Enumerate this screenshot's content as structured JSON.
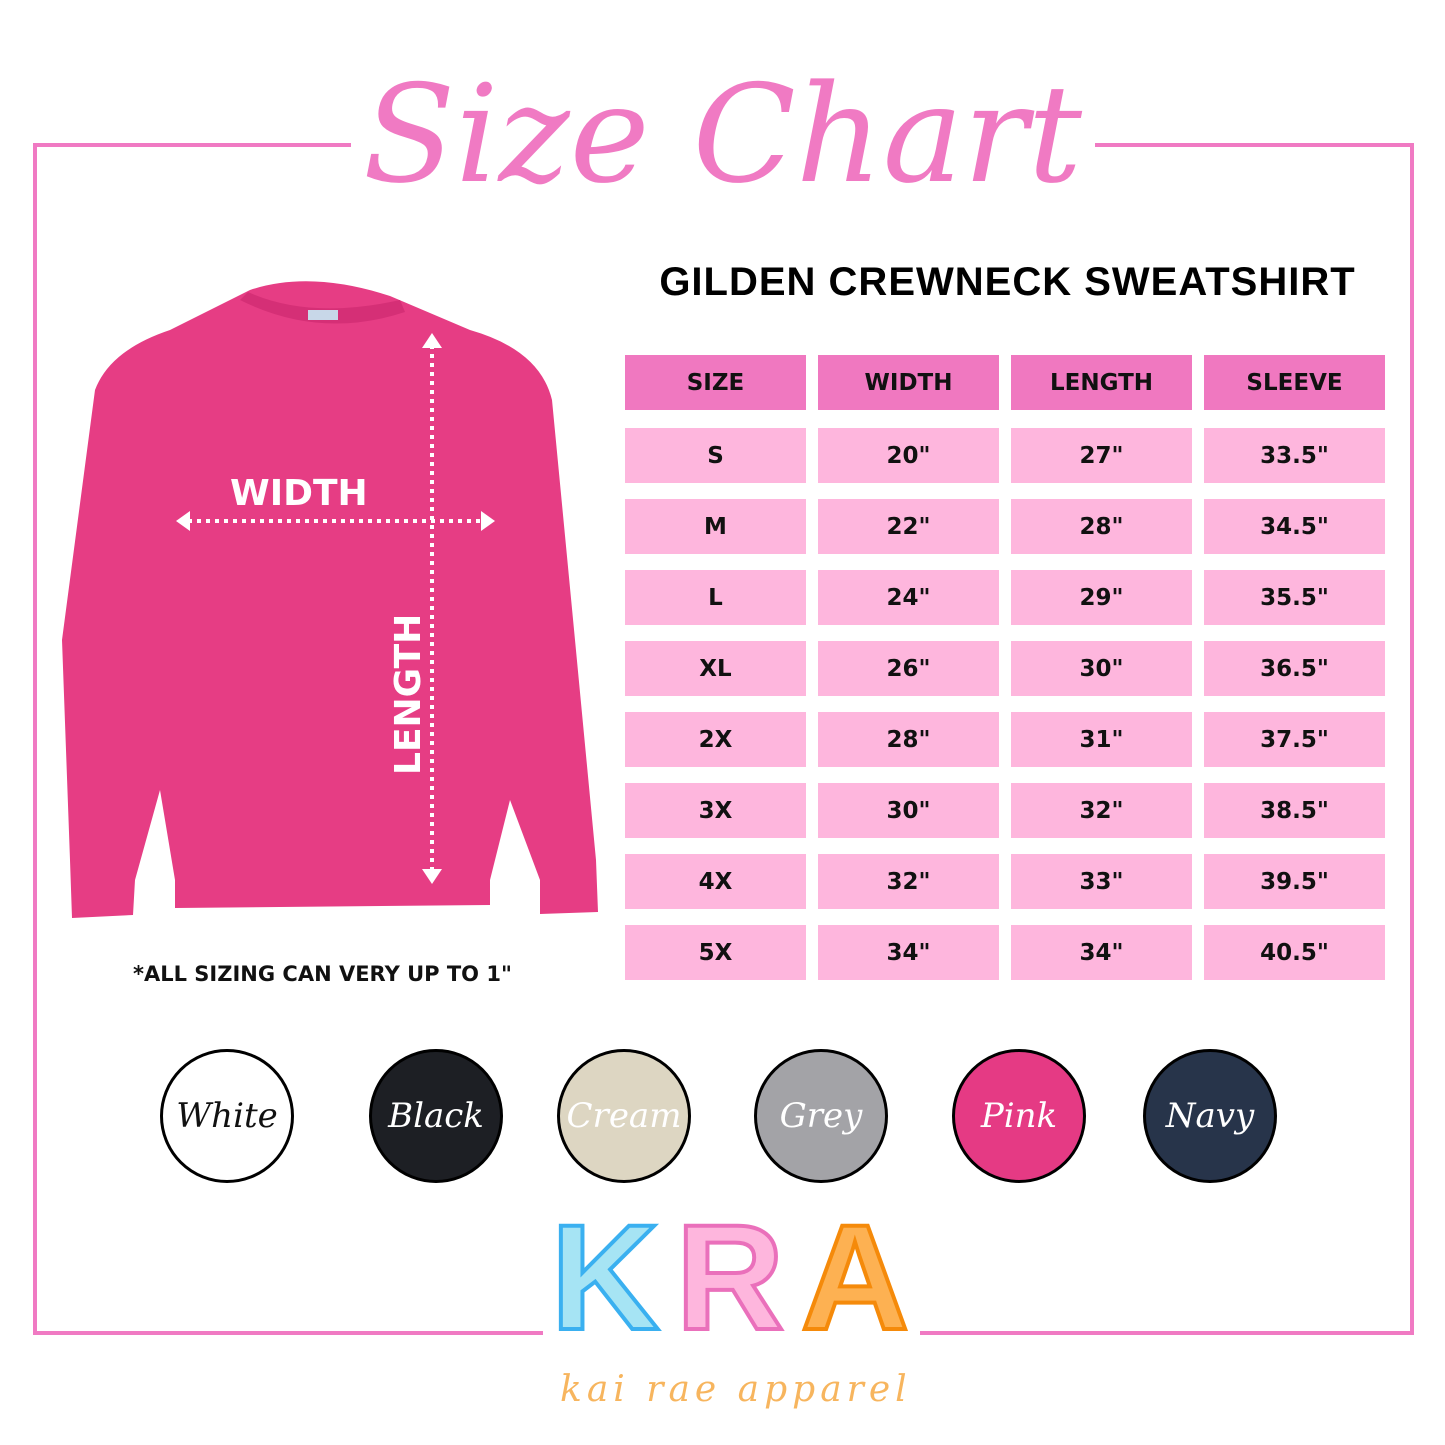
{
  "title": "Size Chart",
  "subtitle": "GILDEN CREWNECK SWEATSHIRT",
  "garment_labels": {
    "width": "WIDTH",
    "length": "LENGTH"
  },
  "table": {
    "headers": [
      "SIZE",
      "WIDTH",
      "LENGTH",
      "SLEEVE"
    ],
    "rows": [
      [
        "S",
        "20\"",
        "27\"",
        "33.5\""
      ],
      [
        "M",
        "22\"",
        "28\"",
        "34.5\""
      ],
      [
        "L",
        "24\"",
        "29\"",
        "35.5\""
      ],
      [
        "XL",
        "26\"",
        "30\"",
        "36.5\""
      ],
      [
        "2X",
        "28\"",
        "31\"",
        "37.5\""
      ],
      [
        "3X",
        "30\"",
        "32\"",
        "38.5\""
      ],
      [
        "4X",
        "32\"",
        "33\"",
        "39.5\""
      ],
      [
        "5X",
        "34\"",
        "34\"",
        "40.5\""
      ]
    ]
  },
  "note": "*ALL SIZING CAN VERY UP TO 1\"",
  "colors": [
    {
      "label": "White",
      "fill": "#ffffff",
      "text": "#111111"
    },
    {
      "label": "Black",
      "fill": "#1d1f24",
      "text": "#ffffff"
    },
    {
      "label": "Cream",
      "fill": "#ddd6c2",
      "text": "#ffffff"
    },
    {
      "label": "Grey",
      "fill": "#a3a3a7",
      "text": "#ffffff"
    },
    {
      "label": "Pink",
      "fill": "#e53a84",
      "text": "#ffffff"
    },
    {
      "label": "Navy",
      "fill": "#27344a",
      "text": "#ffffff"
    }
  ],
  "logo": {
    "letters": [
      "K",
      "R",
      "A"
    ],
    "tagline": "kai rae apparel"
  },
  "accent": "#f07ac3",
  "garment_color": "#e63d84"
}
